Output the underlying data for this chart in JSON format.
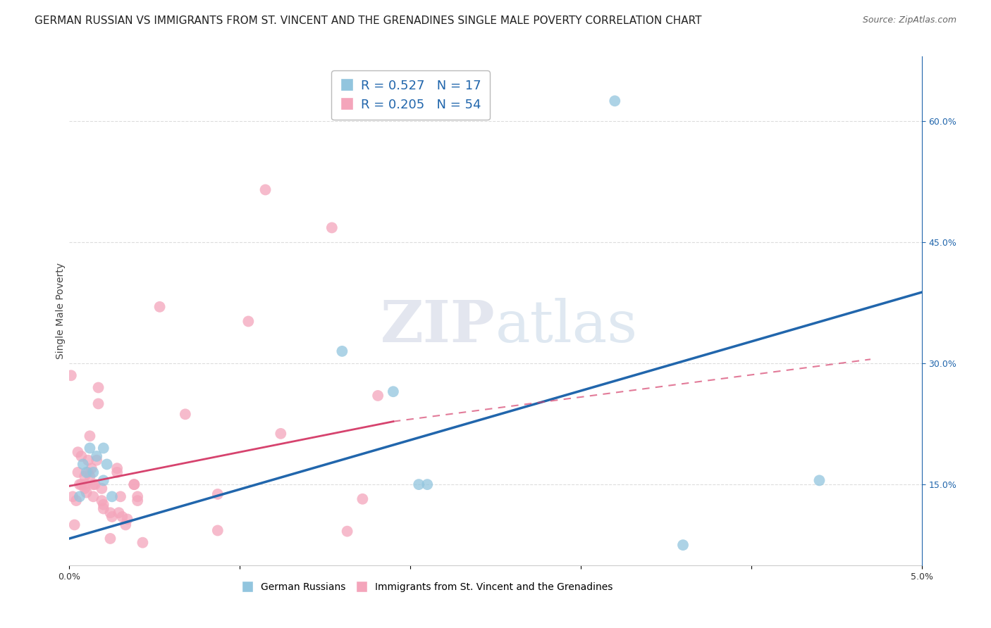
{
  "title": "GERMAN RUSSIAN VS IMMIGRANTS FROM ST. VINCENT AND THE GRENADINES SINGLE MALE POVERTY CORRELATION CHART",
  "source": "Source: ZipAtlas.com",
  "ylabel": "Single Male Poverty",
  "xlim": [
    0.0,
    0.05
  ],
  "ylim": [
    0.05,
    0.68
  ],
  "xticks": [
    0.0,
    0.01,
    0.02,
    0.03,
    0.04,
    0.05
  ],
  "xticklabels": [
    "0.0%",
    "",
    "",
    "",
    "",
    "5.0%"
  ],
  "yticks_right": [
    0.15,
    0.3,
    0.45,
    0.6
  ],
  "yticklabels_right": [
    "15.0%",
    "30.0%",
    "45.0%",
    "60.0%"
  ],
  "legend1_r": "0.527",
  "legend1_n": "17",
  "legend2_r": "0.205",
  "legend2_n": "54",
  "blue_color": "#92c5de",
  "pink_color": "#f4a5bb",
  "blue_line_color": "#2166ac",
  "pink_line_color": "#d6436e",
  "pink_dash_color": "#d6436e",
  "watermark": "ZIPatlas",
  "blue_scatter_x": [
    0.0006,
    0.0008,
    0.001,
    0.0012,
    0.0014,
    0.0016,
    0.002,
    0.002,
    0.0022,
    0.0025,
    0.016,
    0.019,
    0.0205,
    0.021,
    0.032,
    0.036,
    0.044
  ],
  "blue_scatter_y": [
    0.135,
    0.175,
    0.165,
    0.195,
    0.165,
    0.185,
    0.155,
    0.195,
    0.175,
    0.135,
    0.315,
    0.265,
    0.15,
    0.15,
    0.625,
    0.075,
    0.155
  ],
  "pink_scatter_x": [
    0.0001,
    0.0002,
    0.0003,
    0.0004,
    0.0005,
    0.0005,
    0.0006,
    0.0007,
    0.0007,
    0.0009,
    0.0009,
    0.0009,
    0.001,
    0.0011,
    0.0011,
    0.0012,
    0.0012,
    0.0013,
    0.0014,
    0.0014,
    0.0015,
    0.0016,
    0.0017,
    0.0017,
    0.0019,
    0.0019,
    0.002,
    0.002,
    0.0024,
    0.0024,
    0.0025,
    0.0028,
    0.0028,
    0.0029,
    0.003,
    0.0031,
    0.0033,
    0.0034,
    0.0038,
    0.0038,
    0.004,
    0.004,
    0.0043,
    0.0053,
    0.0068,
    0.0087,
    0.0087,
    0.0105,
    0.0115,
    0.0124,
    0.0154,
    0.0163,
    0.0172,
    0.0181
  ],
  "pink_scatter_y": [
    0.285,
    0.135,
    0.1,
    0.13,
    0.165,
    0.19,
    0.15,
    0.15,
    0.185,
    0.145,
    0.15,
    0.16,
    0.14,
    0.165,
    0.18,
    0.16,
    0.21,
    0.17,
    0.135,
    0.15,
    0.15,
    0.18,
    0.25,
    0.27,
    0.13,
    0.145,
    0.125,
    0.12,
    0.083,
    0.115,
    0.11,
    0.17,
    0.165,
    0.115,
    0.135,
    0.11,
    0.1,
    0.107,
    0.15,
    0.15,
    0.13,
    0.135,
    0.078,
    0.37,
    0.237,
    0.093,
    0.138,
    0.352,
    0.515,
    0.213,
    0.468,
    0.092,
    0.132,
    0.26
  ],
  "blue_line_x": [
    0.0,
    0.05
  ],
  "blue_line_y": [
    0.083,
    0.388
  ],
  "pink_solid_line_x": [
    0.0,
    0.019
  ],
  "pink_solid_line_y": [
    0.148,
    0.228
  ],
  "pink_dash_line_x": [
    0.019,
    0.047
  ],
  "pink_dash_line_y": [
    0.228,
    0.305
  ],
  "bg_color": "#ffffff",
  "grid_color": "#dddddd",
  "title_fontsize": 11,
  "source_fontsize": 9,
  "axis_label_fontsize": 10,
  "tick_fontsize": 9
}
